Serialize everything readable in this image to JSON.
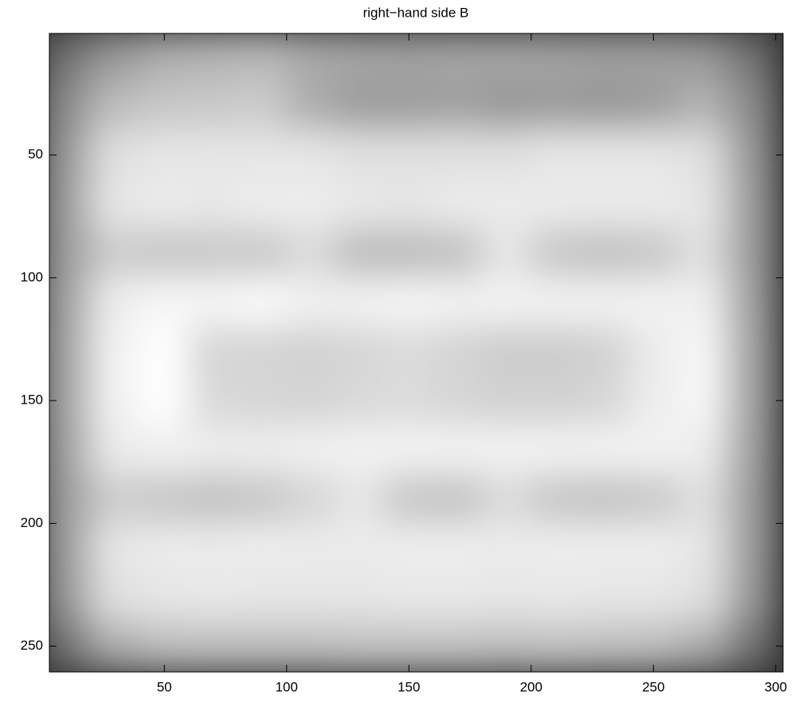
{
  "chart_data": {
    "type": "heatmap",
    "title": "right−hand side B",
    "x": [
      10,
      30,
      50,
      70,
      90,
      110,
      130,
      150,
      170,
      190,
      210,
      230,
      250,
      270,
      290
    ],
    "y": [
      10,
      30,
      50,
      70,
      90,
      110,
      130,
      150,
      170,
      190,
      210,
      230,
      250
    ],
    "values": [
      [
        0.45,
        0.6,
        0.68,
        0.7,
        0.72,
        0.66,
        0.64,
        0.63,
        0.64,
        0.64,
        0.63,
        0.62,
        0.62,
        0.6,
        0.45
      ],
      [
        0.55,
        0.74,
        0.78,
        0.79,
        0.8,
        0.68,
        0.62,
        0.62,
        0.63,
        0.6,
        0.61,
        0.6,
        0.62,
        0.7,
        0.55
      ],
      [
        0.6,
        0.88,
        0.9,
        0.9,
        0.9,
        0.9,
        0.88,
        0.88,
        0.88,
        0.88,
        0.9,
        0.9,
        0.9,
        0.88,
        0.6
      ],
      [
        0.62,
        0.9,
        0.92,
        0.91,
        0.93,
        0.93,
        0.91,
        0.9,
        0.92,
        0.92,
        0.92,
        0.92,
        0.92,
        0.9,
        0.62
      ],
      [
        0.62,
        0.8,
        0.78,
        0.79,
        0.79,
        0.86,
        0.74,
        0.74,
        0.76,
        0.9,
        0.78,
        0.76,
        0.78,
        0.88,
        0.62
      ],
      [
        0.64,
        0.93,
        0.97,
        0.96,
        0.98,
        0.94,
        0.95,
        0.96,
        0.95,
        0.95,
        0.95,
        0.95,
        0.95,
        0.94,
        0.64
      ],
      [
        0.65,
        0.95,
        1.0,
        0.84,
        0.83,
        0.82,
        0.84,
        0.86,
        0.83,
        0.8,
        0.8,
        0.82,
        0.92,
        0.97,
        0.65
      ],
      [
        0.65,
        0.95,
        1.0,
        0.85,
        0.84,
        0.83,
        0.85,
        0.86,
        0.84,
        0.82,
        0.82,
        0.84,
        0.93,
        0.97,
        0.65
      ],
      [
        0.64,
        0.92,
        0.94,
        0.93,
        0.93,
        0.94,
        0.95,
        0.95,
        0.95,
        0.95,
        0.95,
        0.95,
        0.95,
        0.93,
        0.64
      ],
      [
        0.62,
        0.8,
        0.78,
        0.76,
        0.78,
        0.84,
        0.9,
        0.78,
        0.77,
        0.86,
        0.78,
        0.77,
        0.79,
        0.88,
        0.62
      ],
      [
        0.62,
        0.9,
        0.92,
        0.92,
        0.93,
        0.92,
        0.92,
        0.93,
        0.93,
        0.92,
        0.93,
        0.93,
        0.93,
        0.9,
        0.62
      ],
      [
        0.6,
        0.88,
        0.9,
        0.91,
        0.9,
        0.9,
        0.9,
        0.91,
        0.91,
        0.9,
        0.91,
        0.9,
        0.9,
        0.88,
        0.6
      ],
      [
        0.45,
        0.68,
        0.74,
        0.75,
        0.75,
        0.75,
        0.76,
        0.76,
        0.76,
        0.75,
        0.76,
        0.75,
        0.74,
        0.68,
        0.45
      ]
    ],
    "xlim": [
      3,
      303
    ],
    "ylim": [
      260.5,
      0.5
    ],
    "xticks": [
      50,
      100,
      150,
      200,
      250,
      300
    ],
    "yticks": [
      50,
      100,
      150,
      200,
      250
    ],
    "y_reversed": true
  }
}
